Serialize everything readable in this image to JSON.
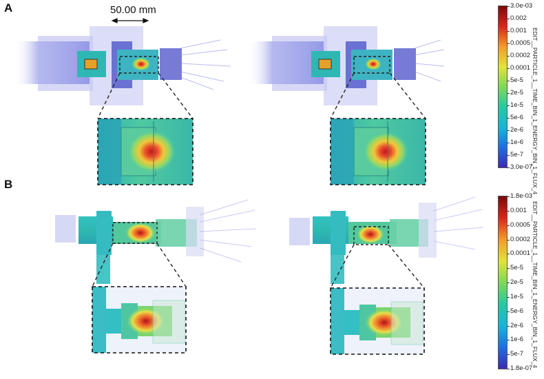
{
  "panels": [
    {
      "letter": "A",
      "scale_bar": "50.00 mm",
      "colorbar": {
        "title": "EDIT__PARTICLE_1__TIME_BIN_1_ENERGY_BIN_1_FLUX_4",
        "ticks": [
          "3.0e-03",
          "0.002",
          "0.001",
          "0.0005",
          "0.0002",
          "0.0001",
          "5e-5",
          "2e-5",
          "1e-5",
          "5e-6",
          "2e-6",
          "1e-6",
          "5e-7",
          "3.0e-07"
        ]
      }
    },
    {
      "letter": "B",
      "colorbar": {
        "title": "EDIT__PARTICLE_1__TIME_BIN_1_ENERGY_BIN_1_FLUX_4",
        "ticks": [
          "1.8e-03",
          "0.001",
          "0.0005",
          "0.0002",
          "0.0001",
          "5e-5",
          "2e-5",
          "1e-5",
          "5e-6",
          "2e-6",
          "1e-6",
          "5e-7",
          "1.8e-07"
        ]
      }
    }
  ],
  "colors": {
    "colormap": [
      "#3b2bb0",
      "#1f6fe0",
      "#18b5d8",
      "#27c9a0",
      "#7fd85a",
      "#e3e23a",
      "#f29a2a",
      "#d9261c",
      "#7a0a0a"
    ]
  }
}
